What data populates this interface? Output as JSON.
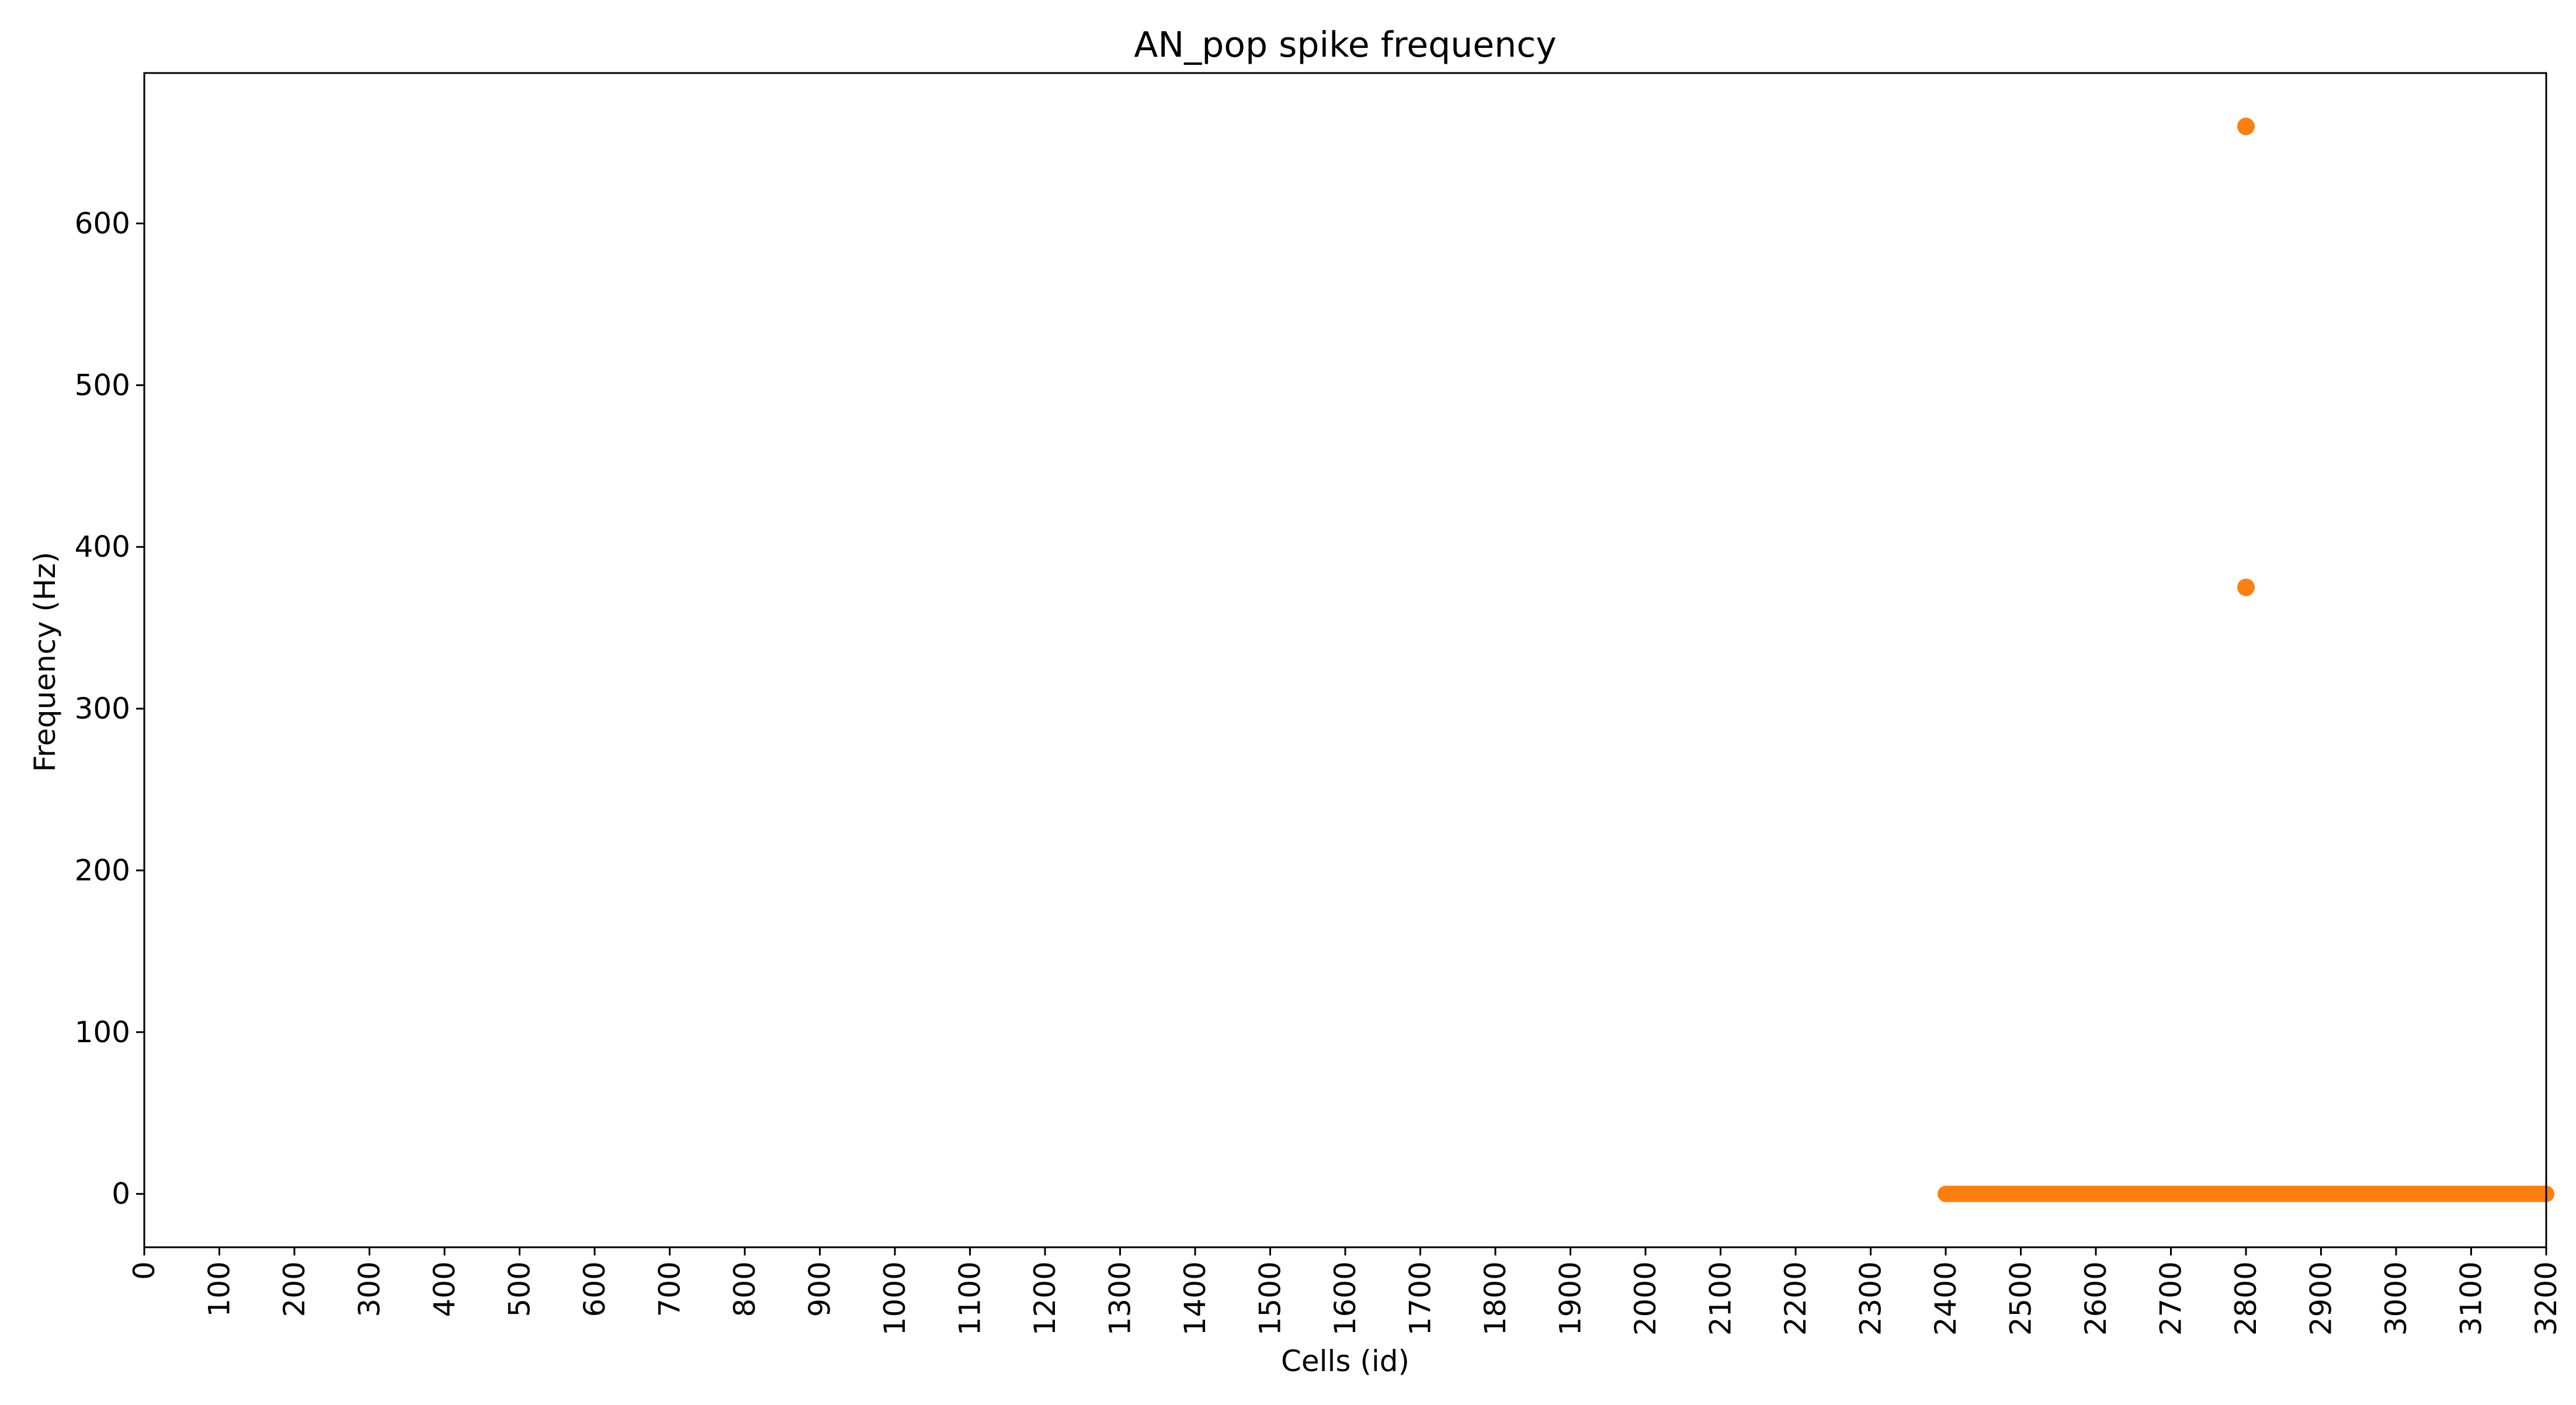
{
  "chart_data": {
    "type": "scatter",
    "title": "AN_pop spike frequency",
    "xlabel": "Cells (id)",
    "ylabel": "Frequency (Hz)",
    "xlim": [
      0,
      3200
    ],
    "ylim": [
      -33,
      693
    ],
    "x_ticks": [
      0,
      100,
      200,
      300,
      400,
      500,
      600,
      700,
      800,
      900,
      1000,
      1100,
      1200,
      1300,
      1400,
      1500,
      1600,
      1700,
      1800,
      1900,
      2000,
      2100,
      2200,
      2300,
      2400,
      2500,
      2600,
      2700,
      2800,
      2900,
      3000,
      3100,
      3200
    ],
    "y_ticks": [
      0,
      100,
      200,
      300,
      400,
      500,
      600
    ],
    "grid": false,
    "series": [
      {
        "color": "#ff7f0e",
        "points": [
          {
            "x": 2800,
            "y": 660
          },
          {
            "x": 2800,
            "y": 375
          }
        ],
        "zero_range": {
          "x_start": 2400,
          "x_end": 3200,
          "step": 1,
          "y": 0
        }
      }
    ]
  }
}
